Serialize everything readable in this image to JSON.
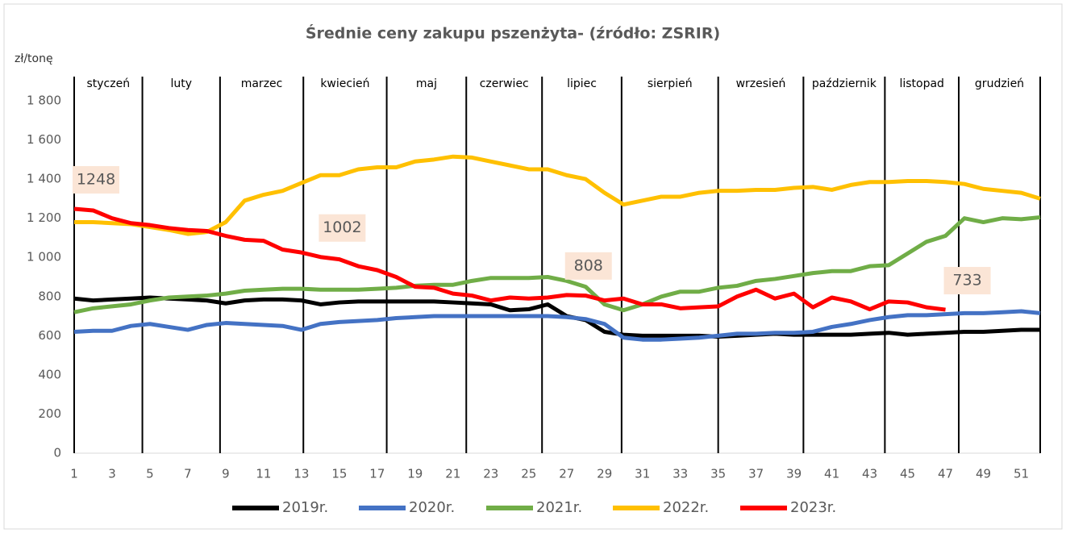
{
  "chart_data": {
    "type": "line",
    "title": "Średnie ceny zakupu pszenżyta- (źródło: ZSRIR)",
    "y_label": "zł/tonę",
    "x": [
      1,
      2,
      3,
      4,
      5,
      6,
      7,
      8,
      9,
      10,
      11,
      12,
      13,
      14,
      15,
      16,
      17,
      18,
      19,
      20,
      21,
      22,
      23,
      24,
      25,
      26,
      27,
      28,
      29,
      30,
      31,
      32,
      33,
      34,
      35,
      36,
      37,
      38,
      39,
      40,
      41,
      42,
      43,
      44,
      45,
      46,
      47,
      48,
      49,
      50,
      51,
      52
    ],
    "xlim": [
      1,
      52
    ],
    "xticks": [
      1,
      3,
      5,
      7,
      9,
      11,
      13,
      15,
      17,
      19,
      21,
      23,
      25,
      27,
      29,
      31,
      33,
      35,
      37,
      39,
      41,
      43,
      45,
      47,
      49,
      51
    ],
    "ylim": [
      0,
      1800
    ],
    "yticks": [
      0,
      200,
      400,
      600,
      800,
      {
        "value": 1000,
        "label": "1 000"
      },
      {
        "value": 1200,
        "label": "1 200"
      },
      {
        "value": 1400,
        "label": "1 400"
      },
      {
        "value": 1600,
        "label": "1 600"
      },
      {
        "value": 1800,
        "label": "1 800"
      }
    ],
    "months": [
      "styczeń",
      "luty",
      "marzec",
      "kwiecień",
      "maj",
      "czerwiec",
      "lipiec",
      "sierpień",
      "wrzesień",
      "październik",
      "listopad",
      "grudzień"
    ],
    "month_boundaries": [
      1,
      4.6,
      8.7,
      13.1,
      17.5,
      21.7,
      25.7,
      29.9,
      35,
      39.5,
      43.8,
      47.7,
      52
    ],
    "series": [
      {
        "name": "2019r.",
        "color": "#000000",
        "values": [
          790,
          780,
          785,
          790,
          795,
          790,
          785,
          780,
          765,
          780,
          785,
          785,
          780,
          760,
          770,
          775,
          775,
          775,
          775,
          775,
          770,
          765,
          760,
          730,
          735,
          760,
          700,
          680,
          620,
          605,
          600,
          600,
          600,
          600,
          595,
          600,
          605,
          610,
          605,
          605,
          605,
          605,
          610,
          615,
          605,
          610,
          615,
          620,
          620,
          625,
          630,
          630
        ]
      },
      {
        "name": "2020r.",
        "color": "#4472c4",
        "values": [
          620,
          625,
          625,
          650,
          660,
          645,
          630,
          655,
          665,
          660,
          655,
          650,
          630,
          660,
          670,
          675,
          680,
          690,
          695,
          700,
          700,
          700,
          700,
          700,
          700,
          700,
          695,
          685,
          660,
          590,
          580,
          580,
          585,
          590,
          600,
          610,
          610,
          615,
          615,
          620,
          645,
          660,
          680,
          695,
          705,
          705,
          710,
          715,
          715,
          720,
          725,
          715
        ]
      },
      {
        "name": "2021r.",
        "color": "#70ad47",
        "values": [
          720,
          740,
          750,
          760,
          780,
          795,
          800,
          805,
          815,
          830,
          835,
          840,
          840,
          835,
          835,
          835,
          840,
          845,
          855,
          860,
          860,
          880,
          895,
          895,
          895,
          900,
          880,
          850,
          760,
          730,
          760,
          800,
          825,
          825,
          845,
          855,
          880,
          890,
          905,
          920,
          930,
          930,
          955,
          960,
          1020,
          1080,
          1110,
          1200,
          1180,
          1200,
          1195,
          1205
        ]
      },
      {
        "name": "2022r.",
        "color": "#ffc000",
        "values": [
          1180,
          1180,
          1175,
          1170,
          1155,
          1140,
          1120,
          1130,
          1180,
          1290,
          1320,
          1340,
          1380,
          1420,
          1420,
          1450,
          1460,
          1460,
          1490,
          1500,
          1515,
          1510,
          1490,
          1470,
          1450,
          1450,
          1420,
          1400,
          1330,
          1270,
          1290,
          1310,
          1310,
          1330,
          1340,
          1340,
          1345,
          1345,
          1355,
          1360,
          1345,
          1370,
          1385,
          1385,
          1390,
          1390,
          1385,
          1375,
          1350,
          1340,
          1330,
          1300
        ]
      },
      {
        "name": "2023r.",
        "color": "#ff0000",
        "labeled_x": [
          1,
          14,
          27,
          47
        ],
        "values": [
          1248,
          1240,
          1200,
          1175,
          1165,
          1150,
          1140,
          1135,
          1110,
          1090,
          1085,
          1040,
          1025,
          1002,
          990,
          955,
          935,
          900,
          850,
          845,
          815,
          805,
          780,
          795,
          790,
          795,
          808,
          805,
          780,
          790,
          760,
          760,
          740,
          745,
          750,
          800,
          835,
          790,
          815,
          745,
          795,
          775,
          735,
          775,
          770,
          745,
          733,
          null,
          null,
          null,
          null,
          null
        ]
      }
    ]
  }
}
